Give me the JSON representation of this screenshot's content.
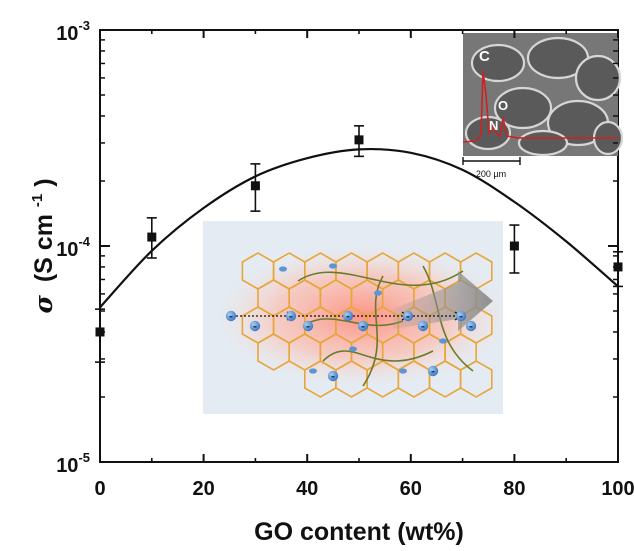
{
  "chart_data": {
    "type": "scatter",
    "xlabel": "GO content (wt%)",
    "ylabel": {
      "symbol": "σ",
      "unit_main": "(S cm",
      "unit_exp": "-1",
      "unit_close": ")"
    },
    "xlim": [
      0,
      100
    ],
    "ylim": [
      1e-05,
      0.001
    ],
    "yscale": "log",
    "x_ticks": [
      0,
      20,
      40,
      60,
      80,
      100
    ],
    "x_tick_labels": [
      "0",
      "20",
      "40",
      "60",
      "80",
      "100"
    ],
    "y_ticks": [
      1e-05,
      0.0001,
      0.001
    ],
    "y_tick_labels": [
      {
        "base": "10",
        "exp": "-5"
      },
      {
        "base": "10",
        "exp": "-4"
      },
      {
        "base": "10",
        "exp": "-3"
      }
    ],
    "grid": false,
    "series": [
      {
        "marker": "square",
        "color": "#111111",
        "points": [
          {
            "x": 0,
            "y": 4e-05,
            "err_low": 2.9e-05,
            "err_high": 5.1e-05
          },
          {
            "x": 10,
            "y": 0.00011,
            "err_low": 8.8e-05,
            "err_high": 0.000135
          },
          {
            "x": 30,
            "y": 0.00019,
            "err_low": 0.000145,
            "err_high": 0.00024
          },
          {
            "x": 50,
            "y": 0.00031,
            "err_low": 0.00026,
            "err_high": 0.00036
          },
          {
            "x": 80,
            "y": 0.0001,
            "err_low": 7.5e-05,
            "err_high": 0.000125
          },
          {
            "x": 100,
            "y": 8e-05,
            "err_low": 6.5e-05,
            "err_high": 9.4e-05
          }
        ]
      }
    ],
    "fit": {
      "type": "line",
      "color": "#111111",
      "points": [
        {
          "x": 0,
          "y": 5.2e-05
        },
        {
          "x": 10,
          "y": 9.5e-05
        },
        {
          "x": 20,
          "y": 0.00015
        },
        {
          "x": 30,
          "y": 0.00021
        },
        {
          "x": 40,
          "y": 0.000255
        },
        {
          "x": 50,
          "y": 0.00028
        },
        {
          "x": 60,
          "y": 0.00027
        },
        {
          "x": 70,
          "y": 0.000225
        },
        {
          "x": 80,
          "y": 0.00016
        },
        {
          "x": 90,
          "y": 0.000105
        },
        {
          "x": 100,
          "y": 6.5e-05
        }
      ]
    },
    "inset_sem": {
      "background": "#777777",
      "eds_color": "#cc2222",
      "peak_labels": [
        "C",
        "N",
        "O"
      ],
      "scale_bar_label": "200 µm"
    },
    "inset_schematic": {
      "background": "#e4ebf2",
      "hex_color": "#e8a63a",
      "glow_color": "#ff9a8a",
      "fiber_color": "#6b7a2a",
      "ion_color": "#5b95d6",
      "arrow_color": "#888888",
      "ion_sign": "-"
    }
  }
}
